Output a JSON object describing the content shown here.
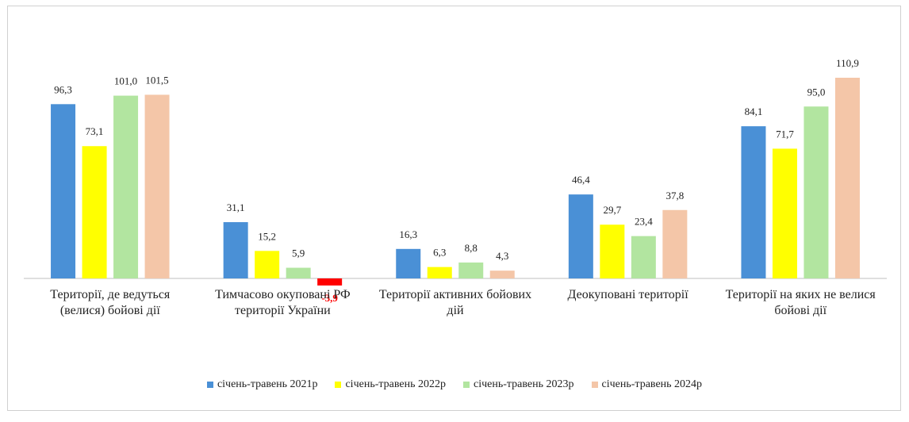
{
  "chart_data": {
    "type": "bar",
    "categories": [
      "Території, де ведуться (велися) бойові дії",
      "Тимчасово окуповані РФ території України",
      "Території активних бойових дій",
      "Деокуповані території",
      "Території на яких не велися бойові дії"
    ],
    "series": [
      {
        "name": "січень-травень 2021р",
        "color": "#4a90d6",
        "values": [
          96.3,
          31.1,
          16.3,
          46.4,
          84.1
        ],
        "value_labels": [
          "96,3",
          "31,1",
          "16,3",
          "46,4",
          "84,1"
        ]
      },
      {
        "name": "січень-травень 2022р",
        "color": "#ffff00",
        "values": [
          73.1,
          15.2,
          6.3,
          29.7,
          71.7
        ],
        "value_labels": [
          "73,1",
          "15,2",
          "6,3",
          "29,7",
          "71,7"
        ]
      },
      {
        "name": "січень-травень 2023р",
        "color": "#b2e5a0",
        "values": [
          101.0,
          5.9,
          8.8,
          23.4,
          95.0
        ],
        "value_labels": [
          "101,0",
          "5,9",
          "8,8",
          "23,4",
          "95,0"
        ]
      },
      {
        "name": "січень-травень 2024р",
        "color": "#f4c6a8",
        "values": [
          101.5,
          -3.9,
          4.3,
          37.8,
          110.9
        ],
        "value_labels": [
          "101,5",
          "-3,9",
          "4,3",
          "37,8",
          "110,9"
        ]
      }
    ],
    "negative_color": "#ff0000",
    "legend": "bottom"
  }
}
